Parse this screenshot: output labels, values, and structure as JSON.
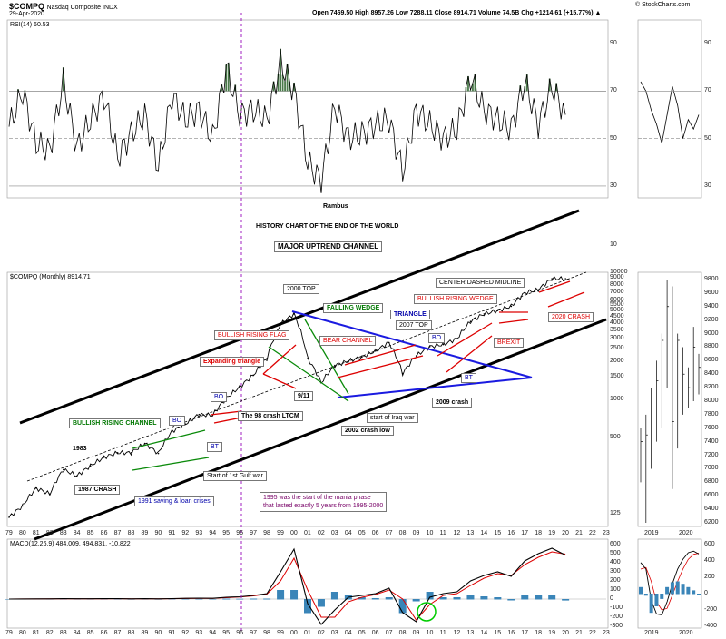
{
  "header": {
    "symbol": "$COMPQ",
    "name": "Nasdaq Composite INDX",
    "date": "29-Apr-2020",
    "ohlc": "Open 7469.50  High 8957.26  Low 7288.11  Close 8914.71  Volume 74.5B  Chg +1214.61 (+15.77%) ▲",
    "credit": "© StockCharts.com"
  },
  "panels": {
    "rsi_label": "RSI(14) 60.53",
    "price_label": "$COMPQ (Monthly) 8914.71",
    "macd_label": "MACD(12,26,9) 484.009, 494.831, -10.822"
  },
  "chart_data": [
    {
      "type": "line",
      "title": "RSI(14)",
      "x": [
        1979,
        1980,
        1981,
        1982,
        1983,
        1984,
        1985,
        1986,
        1987,
        1988,
        1989,
        1990,
        1991,
        1992,
        1993,
        1994,
        1995,
        1996,
        1997,
        1998,
        1999,
        2000,
        2001,
        2002,
        2003,
        2004,
        2005,
        2006,
        2007,
        2008,
        2009,
        2010,
        2011,
        2012,
        2013,
        2014,
        2015,
        2016,
        2017,
        2018,
        2019,
        2020
      ],
      "values": [
        55,
        70,
        48,
        45,
        74,
        46,
        58,
        68,
        42,
        52,
        60,
        38,
        68,
        58,
        62,
        50,
        80,
        60,
        62,
        58,
        82,
        70,
        40,
        32,
        64,
        50,
        52,
        56,
        58,
        36,
        62,
        56,
        50,
        54,
        76,
        62,
        58,
        54,
        74,
        56,
        72,
        60
      ],
      "ylim": [
        25,
        100
      ],
      "ticks": [
        "90",
        "70",
        "50",
        "30"
      ],
      "ticks_left": [
        "90",
        "70",
        "50",
        "30",
        "10"
      ]
    },
    {
      "type": "line",
      "title": "Nasdaq Composite (Monthly)",
      "scale": "log",
      "x": [
        1979,
        1980,
        1981,
        1982,
        1983,
        1984,
        1985,
        1986,
        1987,
        1988,
        1989,
        1990,
        1991,
        1992,
        1993,
        1994,
        1995,
        1996,
        1997,
        1998,
        1999,
        2000,
        2001,
        2002,
        2003,
        2004,
        2005,
        2006,
        2007,
        2008,
        2009,
        2010,
        2011,
        2012,
        2013,
        2014,
        2015,
        2016,
        2017,
        2018,
        2019,
        2020
      ],
      "values": [
        118,
        145,
        200,
        180,
        280,
        250,
        300,
        350,
        380,
        380,
        450,
        375,
        560,
        640,
        760,
        750,
        1020,
        1250,
        1550,
        2100,
        3900,
        4700,
        2100,
        1350,
        1850,
        2000,
        2150,
        2400,
        2800,
        1600,
        2200,
        2600,
        2700,
        3000,
        4100,
        4700,
        5000,
        5400,
        6900,
        7300,
        8900,
        8914
      ],
      "ylim": [
        100,
        10000
      ],
      "yticks": [
        "10000",
        "9000",
        "8000",
        "7000",
        "6000",
        "5500",
        "5000",
        "4500",
        "4000",
        "3500",
        "3000",
        "2500",
        "2000",
        "1500",
        "1000",
        "500",
        "125"
      ],
      "xticks": [
        "79",
        "80",
        "81",
        "82",
        "83",
        "84",
        "85",
        "86",
        "87",
        "88",
        "89",
        "90",
        "91",
        "92",
        "93",
        "94",
        "95",
        "96",
        "97",
        "98",
        "99",
        "00",
        "01",
        "02",
        "03",
        "04",
        "05",
        "06",
        "07",
        "08",
        "09",
        "10",
        "11",
        "12",
        "13",
        "14",
        "15",
        "16",
        "17",
        "18",
        "19",
        "20",
        "21",
        "22",
        "23"
      ],
      "right_yticks": [
        "9800",
        "9600",
        "9400",
        "9200",
        "9000",
        "8800",
        "8600",
        "8400",
        "8200",
        "8000",
        "7800",
        "7600",
        "7400",
        "7200",
        "7000",
        "6800",
        "6600",
        "6400",
        "6200"
      ],
      "right_xticks": [
        "2019",
        "2020"
      ],
      "annotations": {
        "history": "HISTORY CHART OF THE END OF THE WORLD",
        "major": "MAJOR UPTREND CHANNEL",
        "rambus": "Rambus",
        "top2000": "2000 TOP",
        "falling_wedge": "FALLING WEDGE",
        "triangle": "TRIANGLE",
        "top2007": "2007 TOP",
        "center": "CENTER DASHED MIDLINE",
        "bull_wedge": "BULLISH RISING WEDGE",
        "bull_flag": "BULLISH RISING FLAG",
        "bear_channel": "BEAR CHANNEL",
        "expanding": "Expanding triangle",
        "bo1": "BO",
        "bo2": "BO",
        "bo3": "BO",
        "bt1": "BT",
        "bt2": "BT",
        "nine11": "9/11",
        "ltcm": "The 98 crash LTCM",
        "crash2002": "2002 crash low",
        "iraq": "start of Iraq war",
        "crash2009": "2009 crash",
        "crash2020": "2020 CRASH",
        "brexit": "BREXIT",
        "bull_channel": "BULLISH RISING CHANNEL",
        "y1983": "1983",
        "crash1987": "1987 CRASH",
        "gulf": "Start of 1st Gulf war",
        "sl1991": "1991 saving & loan crises",
        "mania1": "1995 was the start of the mania phase",
        "mania2": "that lasted exactly 5 years from 1995-2000"
      }
    },
    {
      "type": "line",
      "title": "MACD(12,26,9)",
      "x": [
        1979,
        1980,
        1981,
        1982,
        1983,
        1984,
        1985,
        1986,
        1987,
        1988,
        1989,
        1990,
        1991,
        1992,
        1993,
        1994,
        1995,
        1996,
        1997,
        1998,
        1999,
        2000,
        2001,
        2002,
        2003,
        2004,
        2005,
        2006,
        2007,
        2008,
        2009,
        2010,
        2011,
        2012,
        2013,
        2014,
        2015,
        2016,
        2017,
        2018,
        2019,
        2020
      ],
      "macd": [
        0,
        1,
        2,
        2,
        4,
        3,
        3,
        4,
        4,
        2,
        4,
        2,
        5,
        8,
        10,
        8,
        20,
        25,
        40,
        60,
        300,
        550,
        -50,
        -280,
        -120,
        20,
        40,
        60,
        120,
        -150,
        -250,
        20,
        60,
        80,
        200,
        260,
        300,
        250,
        420,
        500,
        560,
        484
      ],
      "signal": [
        0,
        1,
        1,
        2,
        3,
        3,
        3,
        3,
        4,
        3,
        3,
        3,
        4,
        6,
        8,
        8,
        15,
        22,
        35,
        55,
        200,
        450,
        100,
        -200,
        -200,
        -30,
        20,
        50,
        100,
        0,
        -230,
        -60,
        40,
        60,
        150,
        230,
        280,
        260,
        380,
        460,
        520,
        495
      ],
      "ylim": [
        -300,
        600
      ],
      "ticks": [
        "600",
        "500",
        "400",
        "300",
        "200",
        "100",
        "0",
        "-100",
        "-200",
        "-300"
      ],
      "right_ticks": [
        "600",
        "400",
        "200",
        "0",
        "-200",
        "-400"
      ]
    }
  ]
}
